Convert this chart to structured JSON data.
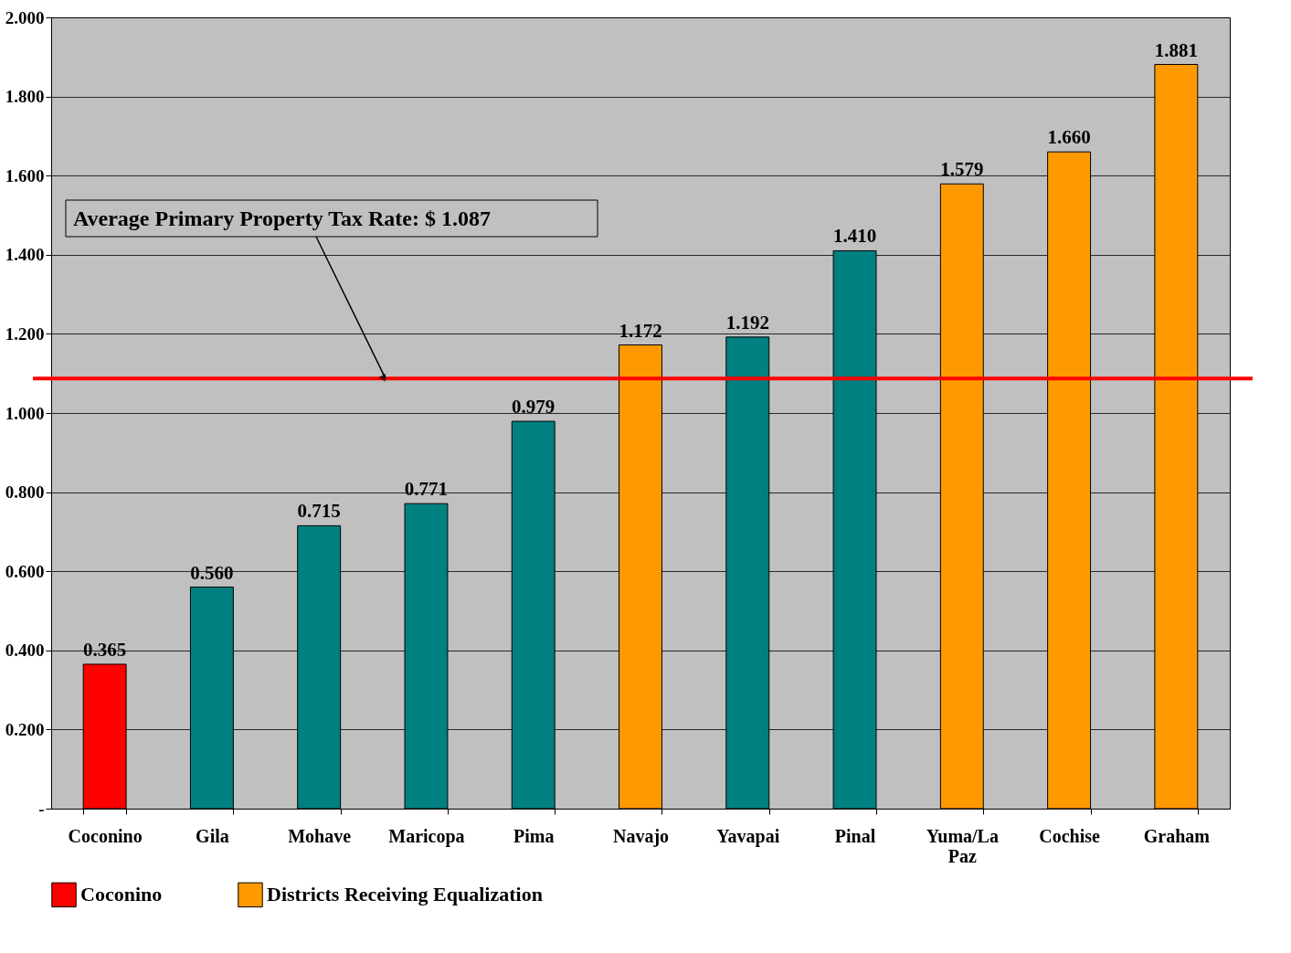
{
  "chart_data": {
    "type": "bar",
    "categories": [
      "Coconino",
      "Gila",
      "Mohave",
      "Maricopa",
      "Pima",
      "Navajo",
      "Yavapai",
      "Pinal",
      "Yuma/La Paz",
      "Cochise",
      "Graham"
    ],
    "series": [
      {
        "name": "Coconino",
        "color": "#ff0000",
        "values": [
          0.365,
          null,
          null,
          null,
          null,
          null,
          null,
          null,
          null,
          null,
          null
        ],
        "value_labels": [
          "0.365",
          null,
          null,
          null,
          null,
          null,
          null,
          null,
          null,
          null,
          null
        ]
      },
      {
        "color": "#008080",
        "values": [
          null,
          0.56,
          0.715,
          0.771,
          0.979,
          null,
          1.192,
          1.41,
          null,
          null,
          null
        ],
        "value_labels": [
          null,
          "0.560",
          "0.715",
          "0.771",
          "0.979",
          null,
          "1.192",
          "1.410",
          null,
          null,
          null
        ]
      },
      {
        "name": "Districts Receiving Equalization",
        "color": "#ff9900",
        "values": [
          null,
          null,
          null,
          null,
          null,
          1.172,
          null,
          null,
          1.579,
          1.66,
          1.881
        ],
        "value_labels": [
          null,
          null,
          null,
          null,
          null,
          "1.172",
          null,
          null,
          "1.579",
          "1.660",
          "1.881"
        ]
      }
    ],
    "ylim": [
      0,
      2
    ],
    "yticks": [
      {
        "value": 0,
        "label": "-"
      },
      {
        "value": 0.2,
        "label": "0.200"
      },
      {
        "value": 0.4,
        "label": "0.400"
      },
      {
        "value": 0.6,
        "label": "0.600"
      },
      {
        "value": 0.8,
        "label": "0.800"
      },
      {
        "value": 1.0,
        "label": "1.000"
      },
      {
        "value": 1.2,
        "label": "1.200"
      },
      {
        "value": 1.4,
        "label": "1.400"
      },
      {
        "value": 1.6,
        "label": "1.600"
      },
      {
        "value": 1.8,
        "label": "1.800"
      },
      {
        "value": 2.0,
        "label": "2.000"
      }
    ],
    "ref_lines": [
      {
        "axis": "y",
        "value": 1.087,
        "label": "Average Primary Property Tax Rate: $ 1.087",
        "color": "#ff0000"
      }
    ],
    "grid": "y",
    "legend": "bottom"
  }
}
